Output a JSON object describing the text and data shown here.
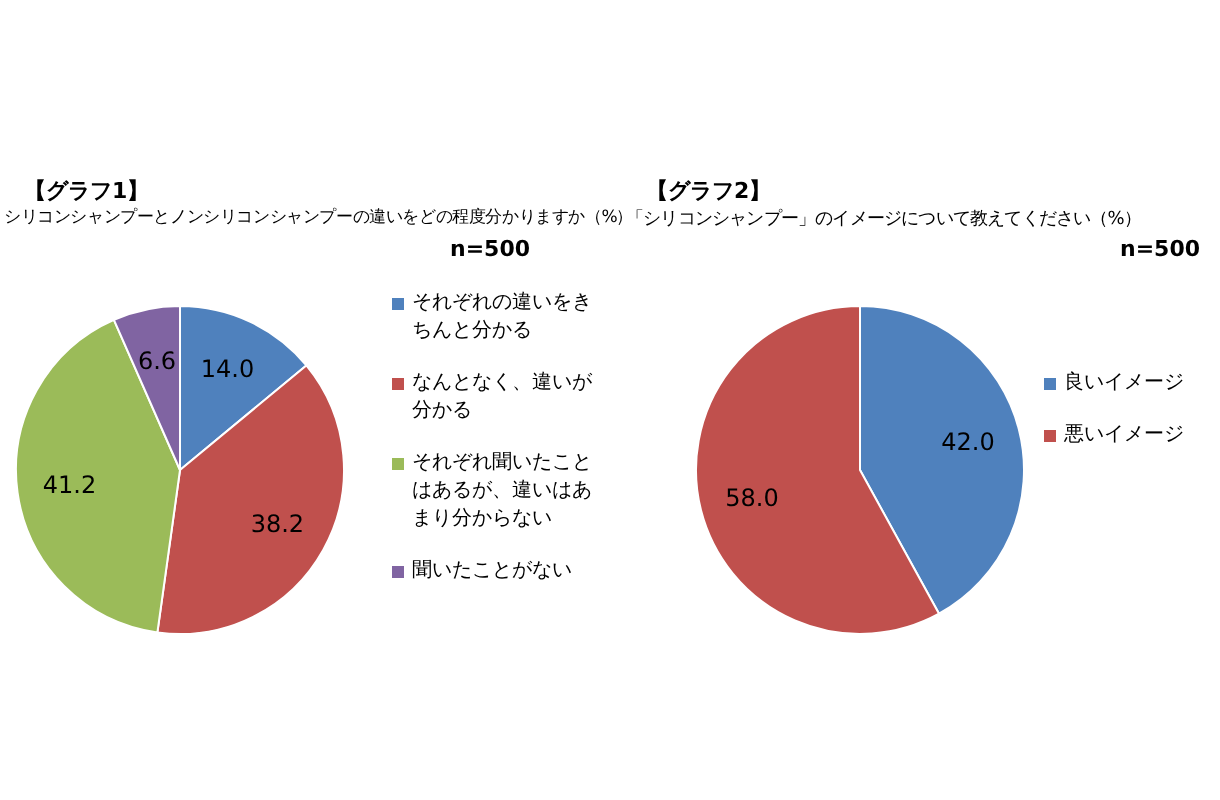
{
  "chart_data": [
    {
      "type": "pie",
      "title": "【グラフ1】",
      "subtitle": "シリコンシャンプーとノンシリコンシャンプーの違いをどの程度分かりますか（%）",
      "annotations": [
        "n=500"
      ],
      "categories": [
        "それぞれの違いをきちんと分かる",
        "なんとなく、違いが分かる",
        "それぞれ聞いたことはあるが、違いはあまり分からない",
        "聞いたことがない"
      ],
      "values": [
        14.0,
        38.2,
        41.2,
        6.6
      ],
      "colors": [
        "#4f81bd",
        "#c0504d",
        "#9bbb59",
        "#8064a2"
      ],
      "value_labels": [
        "14.0",
        "38.2",
        "41.2",
        "6.6"
      ],
      "legend": "right"
    },
    {
      "type": "pie",
      "title": "【グラフ2】",
      "subtitle": "「シリコンシャンプー」のイメージについて教えてください（%）",
      "annotations": [
        "n=500"
      ],
      "categories": [
        "良いイメージ",
        "悪いイメージ"
      ],
      "values": [
        42.0,
        58.0
      ],
      "colors": [
        "#4f81bd",
        "#c0504d"
      ],
      "value_labels": [
        "42.0",
        "58.0"
      ],
      "legend": "right"
    }
  ]
}
